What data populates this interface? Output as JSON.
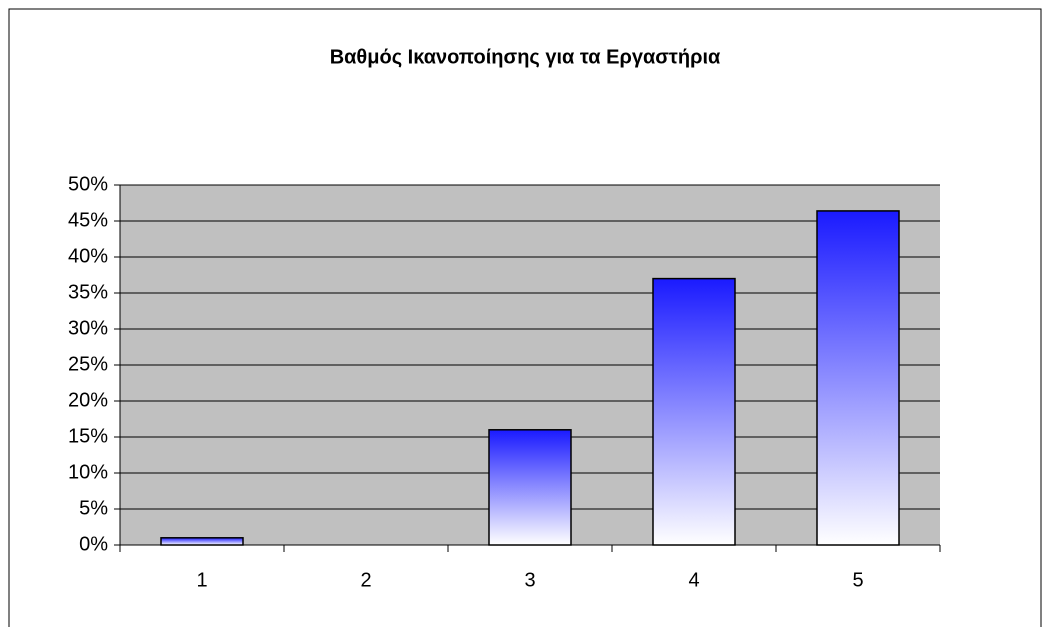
{
  "chart_data": {
    "type": "bar",
    "title": "Βαθμός Ικανοποίησης για τα Εργαστήρια",
    "categories": [
      "1",
      "2",
      "3",
      "4",
      "5"
    ],
    "values": [
      1,
      0,
      16,
      37,
      46.4
    ],
    "color": "#1a1aff",
    "ylim": [
      0,
      50
    ],
    "yticks": [
      {
        "value": 0,
        "label": "0%"
      },
      {
        "value": 5,
        "label": "5%"
      },
      {
        "value": 10,
        "label": "10%"
      },
      {
        "value": 15,
        "label": "15%"
      },
      {
        "value": 20,
        "label": "20%"
      },
      {
        "value": 25,
        "label": "25%"
      },
      {
        "value": 30,
        "label": "30%"
      },
      {
        "value": 35,
        "label": "35%"
      },
      {
        "value": 40,
        "label": "40%"
      },
      {
        "value": 45,
        "label": "45%"
      },
      {
        "value": 50,
        "label": "50%"
      }
    ],
    "grid": true
  }
}
